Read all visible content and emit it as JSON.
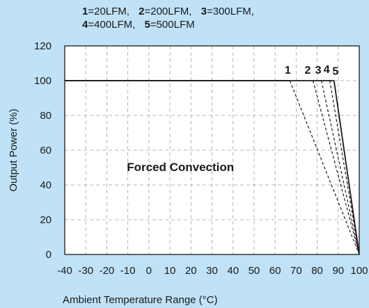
{
  "chart_data": {
    "type": "line",
    "xlabel": "Ambient Temperature Range (°C)",
    "ylabel": "Output Power (%)",
    "annotation": "Forced Convection",
    "xlim": [
      -40,
      100
    ],
    "ylim": [
      0,
      120
    ],
    "x_ticks": [
      -40,
      -30,
      -20,
      -10,
      0,
      10,
      20,
      30,
      40,
      50,
      60,
      70,
      80,
      90,
      100
    ],
    "y_ticks": [
      0,
      20,
      40,
      60,
      80,
      100,
      120
    ],
    "grid": true,
    "legend_position": "top-left",
    "legend": [
      {
        "id": "1",
        "label": "20LFM"
      },
      {
        "id": "2",
        "label": "200LFM"
      },
      {
        "id": "3",
        "label": "300LFM"
      },
      {
        "id": "4",
        "label": "400LFM"
      },
      {
        "id": "5",
        "label": "500LFM"
      }
    ],
    "series": [
      {
        "name": "1",
        "points": [
          [
            -40,
            100
          ],
          [
            67,
            100
          ],
          [
            100,
            0
          ]
        ],
        "style": "dashed-after-derating"
      },
      {
        "name": "2",
        "points": [
          [
            -40,
            100
          ],
          [
            78,
            100
          ],
          [
            100,
            0
          ]
        ],
        "style": "dashed-after-derating"
      },
      {
        "name": "3",
        "points": [
          [
            -40,
            100
          ],
          [
            82,
            100
          ],
          [
            100,
            0
          ]
        ],
        "style": "dashed-after-derating"
      },
      {
        "name": "4",
        "points": [
          [
            -40,
            100
          ],
          [
            86,
            100
          ],
          [
            100,
            0
          ]
        ],
        "style": "dashed-after-derating"
      },
      {
        "name": "5",
        "points": [
          [
            -40,
            100
          ],
          [
            88,
            100
          ],
          [
            100,
            0
          ]
        ],
        "style": "solid"
      }
    ],
    "curve_label_values": [
      {
        "text": "1",
        "x": 66,
        "y": 104
      },
      {
        "text": "2",
        "x": 75.5,
        "y": 104
      },
      {
        "text": "3",
        "x": 80.5,
        "y": 104
      },
      {
        "text": "4",
        "x": 84.5,
        "y": 104.5
      },
      {
        "text": "5",
        "x": 88.7,
        "y": 103.5
      }
    ]
  }
}
